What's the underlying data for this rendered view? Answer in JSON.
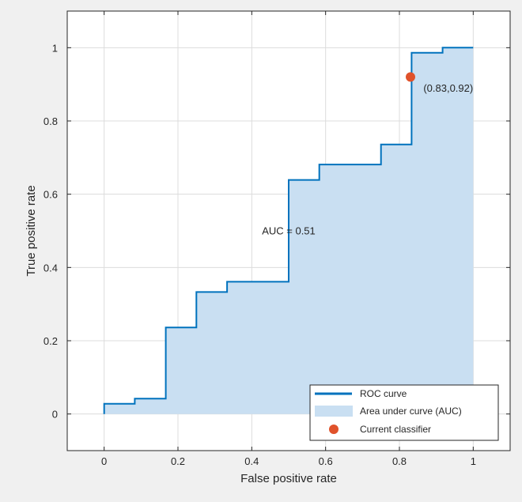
{
  "chart_data": {
    "type": "line",
    "xlabel": "False positive rate",
    "ylabel": "True positive rate",
    "xlim": [
      -0.1,
      1.1
    ],
    "ylim": [
      -0.1,
      1.1
    ],
    "x_ticks": [
      0,
      0.2,
      0.4,
      0.6,
      0.8,
      1
    ],
    "y_ticks": [
      0,
      0.2,
      0.4,
      0.6,
      0.8,
      1
    ],
    "x_tick_labels": [
      "0",
      "0.2",
      "0.4",
      "0.6",
      "0.8",
      "1"
    ],
    "y_tick_labels": [
      "0",
      "0.2",
      "0.4",
      "0.6",
      "0.8",
      "1"
    ],
    "grid": true,
    "legend_position": "bottom-right",
    "series": [
      {
        "name": "ROC curve",
        "color": "#0072bd",
        "x": [
          0,
          0,
          0.083,
          0.083,
          0.167,
          0.167,
          0.25,
          0.25,
          0.333,
          0.333,
          0.5,
          0.5,
          0.583,
          0.583,
          0.75,
          0.75,
          0.833,
          0.833,
          0.917,
          0.917,
          1
        ],
        "y": [
          0,
          0.028,
          0.028,
          0.042,
          0.042,
          0.236,
          0.236,
          0.333,
          0.333,
          0.361,
          0.361,
          0.639,
          0.639,
          0.681,
          0.681,
          0.736,
          0.736,
          0.986,
          0.986,
          1.0,
          1.0
        ]
      },
      {
        "name": "Area under curve (AUC)",
        "color": "#c9dff2"
      },
      {
        "name": "Current classifier",
        "color": "#e0522b",
        "x": [
          0.83
        ],
        "y": [
          0.92
        ]
      }
    ],
    "annotations": [
      {
        "text": "AUC = 0.51",
        "x": 0.5,
        "y": 0.49
      },
      {
        "text": "(0.83,0.92)",
        "x": 0.865,
        "y": 0.88
      }
    ]
  }
}
